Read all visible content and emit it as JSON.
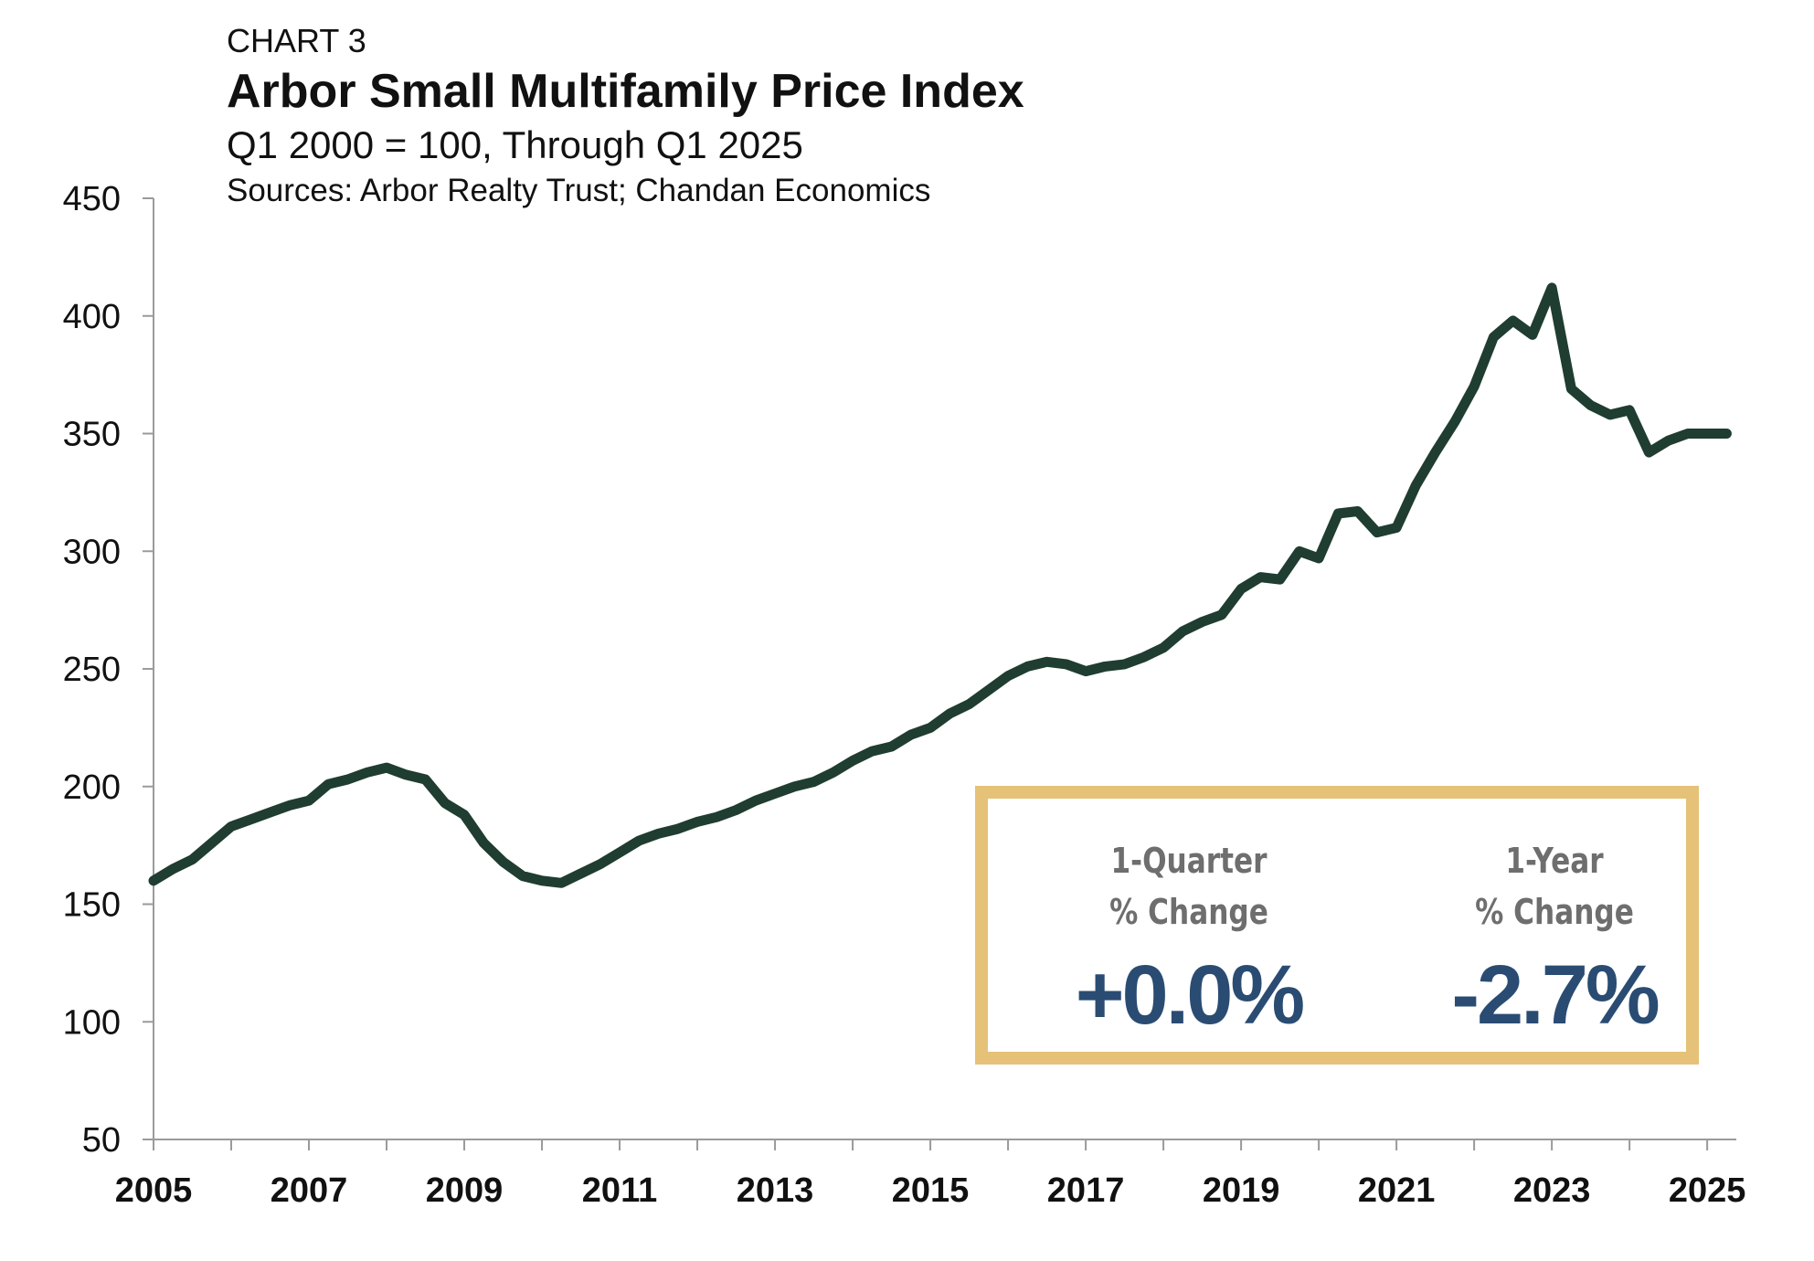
{
  "header": {
    "label": "CHART 3",
    "title": "Arbor Small Multifamily Price Index",
    "subtitle": "Q1 2000 = 100, Through Q1 2025",
    "sources": "Sources: Arbor Realty Trust; Chandan Economics"
  },
  "callout": {
    "quarter_label_1": "1-Quarter",
    "quarter_label_2": "% Change",
    "quarter_value": "+0.0%",
    "year_label_1": "1-Year",
    "year_label_2": "% Change",
    "year_value": "-2.7%",
    "border_color": "#e5c277",
    "value_color": "#2a4c73"
  },
  "chart_data": {
    "type": "line",
    "title": "Arbor Small Multifamily Price Index",
    "subtitle": "Q1 2000 = 100, Through Q1 2025",
    "xlabel": "",
    "ylabel": "",
    "xlim": [
      2005,
      2025.375
    ],
    "ylim": [
      50,
      450
    ],
    "y_ticks": [
      50,
      100,
      150,
      200,
      250,
      300,
      350,
      400,
      450
    ],
    "x_ticks": [
      2005,
      2007,
      2009,
      2011,
      2013,
      2015,
      2017,
      2019,
      2021,
      2023,
      2025
    ],
    "x_tick_labels": [
      "2005",
      "2007",
      "2009",
      "2011",
      "2013",
      "2015",
      "2017",
      "2019",
      "2021",
      "2023",
      "2025"
    ],
    "grid": false,
    "line_color": "#1f3d30",
    "series": [
      {
        "x": [
          2005.0,
          2005.25,
          2005.5,
          2005.75,
          2006.0,
          2006.25,
          2006.5,
          2006.75,
          2007.0,
          2007.25,
          2007.5,
          2007.75,
          2008.0,
          2008.25,
          2008.5,
          2008.75,
          2009.0,
          2009.25,
          2009.5,
          2009.75,
          2010.0,
          2010.25,
          2010.5,
          2010.75,
          2011.0,
          2011.25,
          2011.5,
          2011.75,
          2012.0,
          2012.25,
          2012.5,
          2012.75,
          2013.0,
          2013.25,
          2013.5,
          2013.75,
          2014.0,
          2014.25,
          2014.5,
          2014.75,
          2015.0,
          2015.25,
          2015.5,
          2015.75,
          2016.0,
          2016.25,
          2016.5,
          2016.75,
          2017.0,
          2017.25,
          2017.5,
          2017.75,
          2018.0,
          2018.25,
          2018.5,
          2018.75,
          2019.0,
          2019.25,
          2019.5,
          2019.75,
          2020.0,
          2020.25,
          2020.5,
          2020.75,
          2021.0,
          2021.25,
          2021.5,
          2021.75,
          2022.0,
          2022.25,
          2022.5,
          2022.75,
          2023.0,
          2023.25,
          2023.5,
          2023.75,
          2024.0,
          2024.25,
          2024.5,
          2024.75,
          2025.0,
          2025.25
        ],
        "values": [
          160,
          165,
          169,
          176,
          183,
          186,
          189,
          192,
          194,
          201,
          203,
          206,
          208,
          205,
          203,
          193,
          188,
          176,
          168,
          162,
          160,
          159,
          163,
          167,
          172,
          177,
          180,
          182,
          185,
          187,
          190,
          194,
          197,
          200,
          202,
          206,
          211,
          215,
          217,
          222,
          225,
          231,
          235,
          241,
          247,
          251,
          253,
          252,
          249,
          251,
          252,
          255,
          259,
          266,
          270,
          273,
          284,
          289,
          288,
          300,
          297,
          316,
          317,
          308,
          310,
          328,
          342,
          355,
          370,
          391,
          398,
          392,
          412,
          369,
          362,
          358,
          360,
          342,
          347,
          350,
          350,
          350
        ]
      }
    ]
  }
}
